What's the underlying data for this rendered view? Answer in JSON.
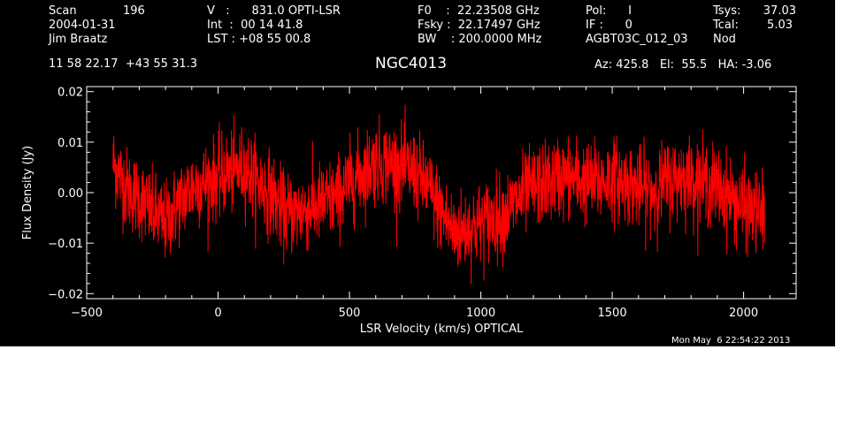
{
  "header": {
    "col1": {
      "scan_label": "Scan",
      "scan_value": "196",
      "date": "2004-01-31",
      "observer": "Jim Braatz"
    },
    "col2": {
      "v_line": "V   :      831.0 OPTI-LSR",
      "int_line": "Int  :  00 14 41.8",
      "lst_line": "LST : +08 55 00.8"
    },
    "col3": {
      "f0_line": "F0    :  22.23508 GHz",
      "fsky_line": "Fsky :  22.17497 GHz",
      "bw_line": "BW    : 200.0000 MHz"
    },
    "col4": {
      "pol_line": "Pol:      I",
      "if_line": "IF :      0",
      "project": "AGBT03C_012_03"
    },
    "col5": {
      "tsys_label": "Tsys:",
      "tsys_value": "37.03",
      "tcal_label": "Tcal:",
      "tcal_value": "5.03",
      "nod": "Nod"
    },
    "coords": "11 58 22.17  +43 55 31.3",
    "source": "NGC4013",
    "pointing": "Az: 425.8   El:  55.5   HA: -3.06",
    "timestamp": "Mon May  6 22:54:22 2013"
  },
  "colors": {
    "background": "#000000",
    "foreground": "#ffffff",
    "series": "#ff0000"
  },
  "chart_data": {
    "type": "line",
    "xlabel": "LSR Velocity (km/s) OPTICAL",
    "ylabel": "Flux Density (Jy)",
    "xlim": [
      -500,
      2200
    ],
    "ylim": [
      -0.021,
      0.021
    ],
    "x_ticks": [
      -500,
      0,
      500,
      1000,
      1500,
      2000
    ],
    "x_tick_labels": [
      "−500",
      "0",
      "500",
      "1000",
      "1500",
      "2000"
    ],
    "y_ticks": [
      -0.02,
      -0.01,
      0.0,
      0.01,
      0.02
    ],
    "y_tick_labels": [
      "−0.02",
      "−0.01",
      "0.00",
      "0.01",
      "0.02"
    ],
    "grid": false,
    "series": [
      {
        "x": [
          -400,
          -350,
          -300,
          -250,
          -200,
          -150,
          -100,
          -50,
          0,
          50,
          100,
          150,
          200,
          250,
          300,
          350,
          400,
          450,
          500,
          550,
          600,
          650,
          700,
          750,
          800,
          850,
          900,
          950,
          1000,
          1050,
          1100,
          1150,
          1200,
          1250,
          1300,
          1350,
          1400,
          1450,
          1500,
          1550,
          1600,
          1650,
          1700,
          1750,
          1800,
          1850,
          1900,
          1950,
          2000,
          2050,
          2080
        ],
        "values": [
          0.006,
          0.001,
          -0.001,
          -0.004,
          -0.006,
          -0.002,
          0.001,
          0.002,
          0.003,
          0.004,
          0.005,
          0.002,
          0.0,
          -0.004,
          -0.004,
          -0.003,
          -0.002,
          -0.001,
          0.002,
          0.004,
          0.006,
          0.006,
          0.005,
          0.004,
          0.001,
          -0.004,
          -0.008,
          -0.007,
          -0.006,
          -0.005,
          -0.004,
          -0.001,
          0.001,
          0.002,
          0.003,
          0.003,
          0.002,
          0.002,
          0.003,
          0.002,
          0.001,
          0.0,
          0.002,
          0.003,
          0.003,
          0.002,
          0.001,
          -0.001,
          -0.003,
          -0.004,
          -0.004
        ],
        "noise_rms": 0.004
      }
    ]
  }
}
